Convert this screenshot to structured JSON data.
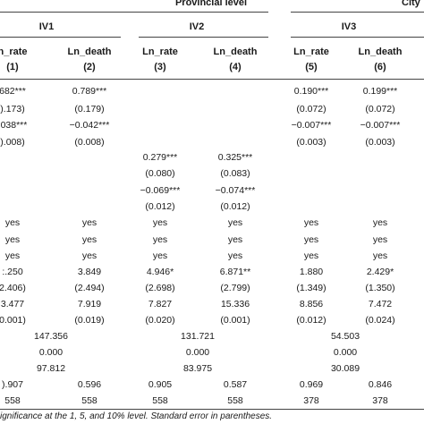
{
  "header": {
    "provincial": "Provincial level",
    "city": "City",
    "iv1": "IV1",
    "iv2": "IV2",
    "iv3": "IV3"
  },
  "columns": [
    {
      "var": "n_rate",
      "num": "(1)"
    },
    {
      "var": "Ln_death",
      "num": "(2)"
    },
    {
      "var": "Ln_rate",
      "num": "(3)"
    },
    {
      "var": "Ln_death",
      "num": "(4)"
    },
    {
      "var": "Ln_rate",
      "num": "(5)"
    },
    {
      "var": "Ln_death",
      "num": "(6)"
    }
  ],
  "rows": [
    [
      "682***",
      "0.789***",
      "",
      "",
      "0.190***",
      "0.199***"
    ],
    [
      ").173)",
      "(0.179)",
      "",
      "",
      "(0.072)",
      "(0.072)"
    ],
    [
      ".038***",
      "−0.042***",
      "",
      "",
      "−0.007***",
      "−0.007***"
    ],
    [
      ").008)",
      "(0.008)",
      "",
      "",
      "(0.003)",
      "(0.003)"
    ],
    [
      "",
      "",
      "0.279***",
      "0.325***",
      "",
      ""
    ],
    [
      "",
      "",
      "(0.080)",
      "(0.083)",
      "",
      ""
    ],
    [
      "",
      "",
      "−0.069***",
      "−0.074***",
      "",
      ""
    ],
    [
      "",
      "",
      "(0.012)",
      "(0.012)",
      "",
      ""
    ],
    [
      "yes",
      "yes",
      "yes",
      "yes",
      "yes",
      "yes"
    ],
    [
      "yes",
      "yes",
      "yes",
      "yes",
      "yes",
      "yes"
    ],
    [
      "yes",
      "yes",
      "yes",
      "yes",
      "yes",
      "yes"
    ],
    [
      ":.250",
      "3.849",
      "4.946*",
      "6.871**",
      "1.880",
      "2.429*"
    ],
    [
      "2.406)",
      "(2.494)",
      "(2.698)",
      "(2.799)",
      "(1.349)",
      "(1.350)"
    ],
    [
      "3.477",
      "7.919",
      "7.827",
      "15.336",
      "8.856",
      "7.472"
    ],
    [
      "0.001)",
      "(0.019)",
      "(0.020)",
      "(0.001)",
      "(0.012)",
      "(0.024)"
    ]
  ],
  "pair_rows": [
    [
      "147.356",
      "131.721",
      "54.503"
    ],
    [
      "0.000",
      "0.000",
      "0.000"
    ],
    [
      "97.812",
      "83.975",
      "30.089"
    ]
  ],
  "tail_rows": [
    [
      ").907",
      "0.596",
      "0.905",
      "0.587",
      "0.969",
      "0.846"
    ],
    [
      "558",
      "558",
      "558",
      "558",
      "378",
      "378"
    ]
  ],
  "footnote": "ignificance at the 1, 5, and 10% level. Standard error in parentheses."
}
